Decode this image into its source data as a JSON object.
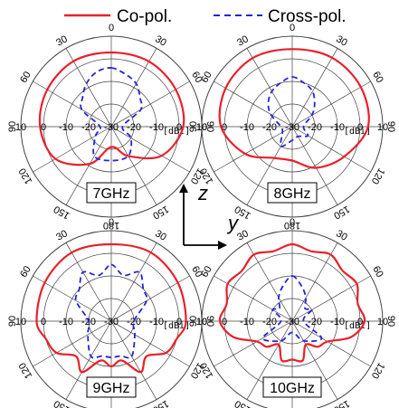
{
  "legend": {
    "copol_label": "Co-pol.",
    "crosspol_label": "Cross-pol.",
    "copol_color": "#e8212b",
    "crosspol_color": "#2424d6"
  },
  "axes_note": {
    "z_label": "z",
    "y_label": "y"
  },
  "chart_data": [
    {
      "type": "polar-line",
      "frequency_label": "7GHz",
      "unit_label": "[dBi]",
      "radial_range": [
        -30,
        10
      ],
      "radial_ticks": [
        10,
        0,
        -10,
        -20,
        -30
      ],
      "angle_ticks": [
        0,
        30,
        60,
        90,
        120,
        150,
        180,
        -150,
        -120,
        -90,
        -60,
        -30
      ],
      "angle_tick_labels": [
        "0",
        "30",
        "60",
        "90",
        "120",
        "150",
        "180",
        "150",
        "120",
        "90",
        "60",
        "30"
      ],
      "series": [
        {
          "name": "Co-pol.",
          "theta": [
            0,
            30,
            60,
            90,
            120,
            150,
            180,
            210,
            240,
            270,
            300,
            330
          ],
          "r": [
            2.8,
            3.3,
            2.9,
            1.8,
            -4.3,
            -15.0,
            -21.0,
            -11.0,
            -1.5,
            1.5,
            2.7,
            3.4
          ]
        },
        {
          "name": "Cross-pol.",
          "theta": [
            0,
            15,
            30,
            45,
            60,
            90,
            120,
            150,
            180,
            210,
            240,
            270,
            300,
            315,
            330,
            345
          ],
          "r": [
            -4.0,
            -6.0,
            -8.0,
            -12.0,
            -15.0,
            -25.0,
            -20.0,
            -15.0,
            -15.0,
            -15.0,
            -22.0,
            -25.0,
            -15.0,
            -12.0,
            -8.0,
            -5.0
          ]
        }
      ]
    },
    {
      "type": "polar-line",
      "frequency_label": "8GHz",
      "unit_label": "[dBi]",
      "radial_range": [
        -30,
        10
      ],
      "radial_ticks": [
        10,
        0,
        -10,
        -20,
        -30
      ],
      "angle_ticks": [
        0,
        30,
        60,
        90,
        120,
        150,
        180,
        -150,
        -120,
        -90,
        -60,
        -30
      ],
      "angle_tick_labels": [
        "0",
        "30",
        "60",
        "90",
        "120",
        "150",
        "180",
        "150",
        "120",
        "90",
        "60",
        "30"
      ],
      "series": [
        {
          "name": "Co-pol.",
          "theta": [
            0,
            30,
            60,
            90,
            120,
            150,
            180,
            210,
            240,
            270,
            300,
            330
          ],
          "r": [
            4.3,
            5.2,
            5.0,
            3.5,
            -3.5,
            -9.0,
            -15.0,
            -14.0,
            -6.0,
            1.5,
            4.0,
            5.0
          ]
        },
        {
          "name": "Cross-pol.",
          "theta": [
            0,
            15,
            30,
            45,
            60,
            90,
            120,
            150,
            180,
            210,
            240,
            270,
            300,
            315,
            330,
            345
          ],
          "r": [
            -8.0,
            -10.0,
            -12.0,
            -16.0,
            -20.0,
            -25.0,
            -22.0,
            -25.0,
            -24.0,
            -20.0,
            -25.0,
            -25.0,
            -19.0,
            -15.0,
            -12.0,
            -10.0
          ]
        }
      ]
    },
    {
      "type": "polar-line",
      "frequency_label": "9GHz",
      "unit_label": "[dBi]",
      "radial_range": [
        -30,
        10
      ],
      "radial_ticks": [
        10,
        0,
        -10,
        -20,
        -30
      ],
      "angle_ticks": [
        0,
        30,
        60,
        90,
        120,
        150,
        180,
        -150,
        -120,
        -90,
        -60,
        -30
      ],
      "angle_tick_labels": [
        "0",
        "30",
        "60",
        "90",
        "120",
        "150",
        "180",
        "150",
        "120",
        "90",
        "60",
        "30"
      ],
      "series": [
        {
          "name": "Co-pol.",
          "theta": [
            0,
            30,
            60,
            90,
            105,
            120,
            135,
            150,
            165,
            180,
            195,
            210,
            225,
            240,
            255,
            270,
            300,
            330
          ],
          "r": [
            4.0,
            5.0,
            4.0,
            3.0,
            0.0,
            -2.0,
            -8.0,
            -4.0,
            -12.0,
            -10.0,
            -12.0,
            -4.0,
            -8.0,
            -2.0,
            0.0,
            3.0,
            4.0,
            5.0
          ]
        },
        {
          "name": "Cross-pol.",
          "theta": [
            0,
            15,
            30,
            45,
            60,
            90,
            120,
            150,
            165,
            180,
            195,
            210,
            240,
            270,
            300,
            315,
            330,
            345
          ],
          "r": [
            -5.0,
            -9.0,
            -5.0,
            -10.0,
            -12.0,
            -20.0,
            -18.0,
            -12.0,
            -14.0,
            -14.0,
            -14.0,
            -12.0,
            -18.0,
            -20.0,
            -12.0,
            -10.0,
            -5.0,
            -9.0
          ]
        }
      ]
    },
    {
      "type": "polar-line",
      "frequency_label": "10GHz",
      "unit_label": "[dBi]",
      "radial_range": [
        -30,
        10
      ],
      "radial_ticks": [
        10,
        0,
        -10,
        -20,
        -30
      ],
      "angle_ticks": [
        0,
        30,
        60,
        90,
        120,
        150,
        180,
        -150,
        -120,
        -90,
        -60,
        -30
      ],
      "angle_tick_labels": [
        "0",
        "30",
        "60",
        "90",
        "120",
        "150",
        "180",
        "150",
        "120",
        "90",
        "60",
        "30"
      ],
      "series": [
        {
          "name": "Co-pol.",
          "theta": [
            0,
            15,
            30,
            45,
            60,
            75,
            90,
            105,
            120,
            135,
            150,
            165,
            180,
            195,
            210,
            225,
            240,
            255,
            270,
            285,
            300,
            315,
            330,
            345
          ],
          "r": [
            4.0,
            2.0,
            4.0,
            1.5,
            3.0,
            0.0,
            2.0,
            -3.0,
            -12.0,
            -14.0,
            -18.0,
            -12.0,
            -13.0,
            -12.0,
            -18.0,
            -14.0,
            -12.0,
            -3.0,
            2.0,
            0.0,
            3.0,
            1.5,
            4.0,
            2.0
          ]
        },
        {
          "name": "Cross-pol.",
          "theta": [
            0,
            15,
            30,
            45,
            60,
            90,
            120,
            150,
            180,
            210,
            240,
            270,
            300,
            315,
            330,
            345
          ],
          "r": [
            -10.0,
            -14.0,
            -18.0,
            -22.0,
            -20.0,
            -25.0,
            -15.0,
            -20.0,
            -25.0,
            -20.0,
            -15.0,
            -25.0,
            -20.0,
            -22.0,
            -18.0,
            -14.0
          ]
        }
      ]
    }
  ]
}
